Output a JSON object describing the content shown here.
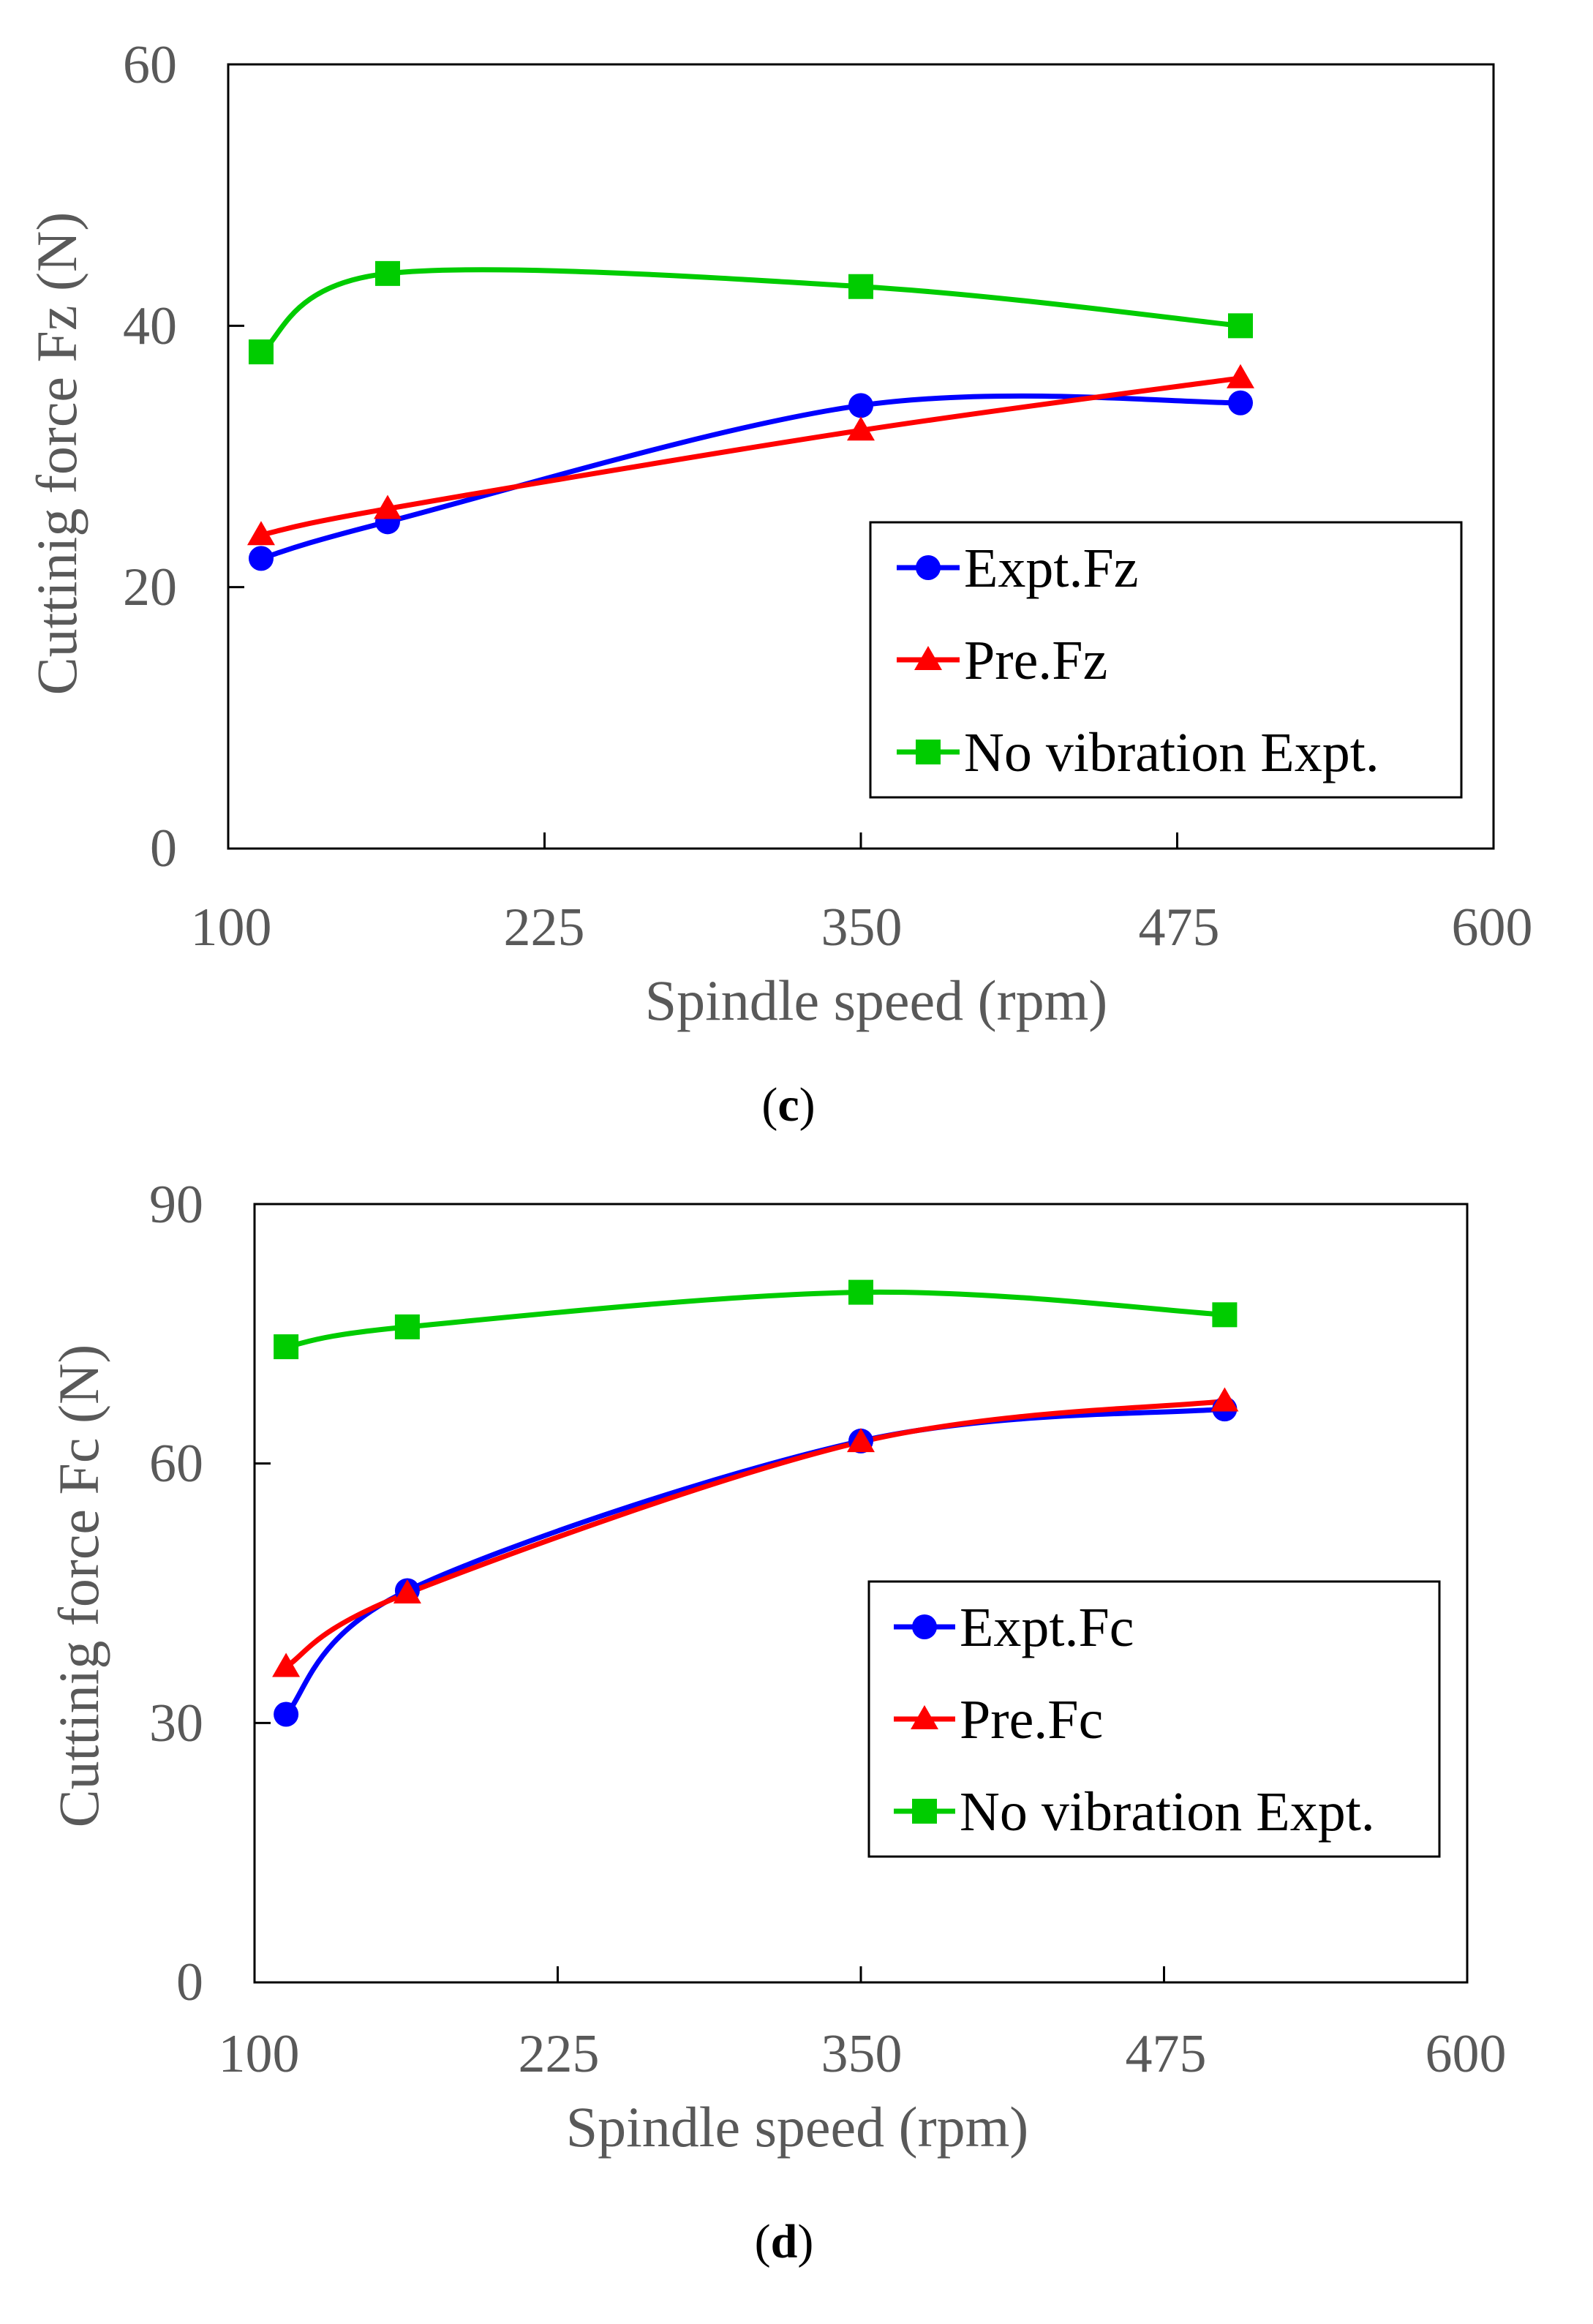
{
  "chart_data": [
    {
      "type": "line",
      "panel_label": {
        "open": "(",
        "letter": "c",
        "close": ")"
      },
      "xlabel": "Spindle speed (rpm)",
      "ylabel": "Cuttinig force Fz (N)",
      "xlim": [
        100,
        600
      ],
      "ylim": [
        0,
        60
      ],
      "xticks": [
        "100",
        "225",
        "350",
        "475",
        "600"
      ],
      "yticks": [
        "0",
        "20",
        "40",
        "60"
      ],
      "grid": false,
      "legend_position": "lower-right",
      "x": [
        113,
        163,
        350,
        500
      ],
      "series": [
        {
          "name": "Expt.Fz",
          "color": "#0000ff",
          "marker": "circle",
          "values": [
            22.2,
            25.0,
            33.9,
            34.1
          ]
        },
        {
          "name": "Pre.Fz",
          "color": "#ff0000",
          "marker": "triangle",
          "values": [
            24.0,
            26.0,
            32.0,
            36.0
          ]
        },
        {
          "name": "No vibration Expt.",
          "color": "#00cc00",
          "marker": "square",
          "values": [
            38.0,
            44.0,
            43.0,
            40.0
          ]
        }
      ]
    },
    {
      "type": "line",
      "panel_label": {
        "open": "(",
        "letter": "d",
        "close": ")"
      },
      "xlabel": "Spindle speed (rpm)",
      "ylabel": "Cuttinig force Fc (N)",
      "xlim": [
        100,
        600
      ],
      "ylim": [
        0,
        90
      ],
      "xticks": [
        "100",
        "225",
        "350",
        "475",
        "600"
      ],
      "yticks": [
        "0",
        "30",
        "60",
        "90"
      ],
      "grid": false,
      "legend_position": "lower-right",
      "x": [
        113,
        163,
        350,
        500
      ],
      "series": [
        {
          "name": "Expt.Fc",
          "color": "#0000ff",
          "marker": "circle",
          "values": [
            31.0,
            45.3,
            62.6,
            66.3
          ]
        },
        {
          "name": "Pre.Fc",
          "color": "#ff0000",
          "marker": "triangle",
          "values": [
            36.5,
            45.0,
            62.5,
            67.2
          ]
        },
        {
          "name": "No vibration Expt.",
          "color": "#00cc00",
          "marker": "square",
          "values": [
            73.5,
            75.8,
            79.8,
            77.2
          ]
        }
      ]
    }
  ]
}
